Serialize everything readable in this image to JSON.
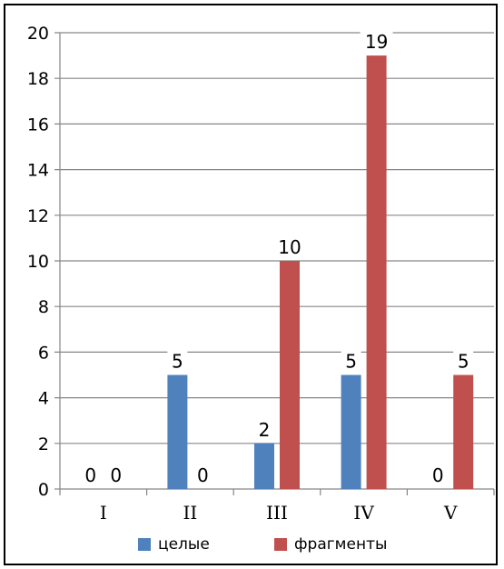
{
  "chart_data": {
    "type": "bar",
    "title": "",
    "xlabel": "",
    "ylabel": "",
    "categories": [
      "I",
      "II",
      "III",
      "IV",
      "V"
    ],
    "series": [
      {
        "name": "целые",
        "color": "#4f81bd",
        "values": [
          0,
          5,
          2,
          5,
          0
        ]
      },
      {
        "name": "фрагменты",
        "color": "#c0504d",
        "values": [
          0,
          0,
          10,
          19,
          5
        ]
      }
    ],
    "ylim": [
      0,
      20
    ],
    "yticks": [
      0,
      2,
      4,
      6,
      8,
      10,
      12,
      14,
      16,
      18,
      20
    ],
    "grid": true,
    "legend_position": "bottom",
    "data_labels": true
  }
}
